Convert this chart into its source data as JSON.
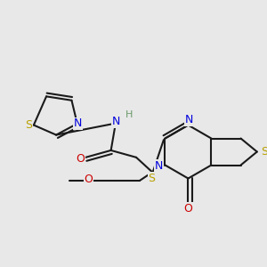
{
  "bg_color": "#e8e8e8",
  "bond_color": "#1a1a1a",
  "N_color": "#0000dd",
  "S_color": "#b8a000",
  "O_color": "#cc0000",
  "H_color": "#6a9a6a",
  "font_size": 9.0,
  "lw": 1.5,
  "xlim": [
    0,
    10
  ],
  "ylim": [
    0,
    10
  ]
}
